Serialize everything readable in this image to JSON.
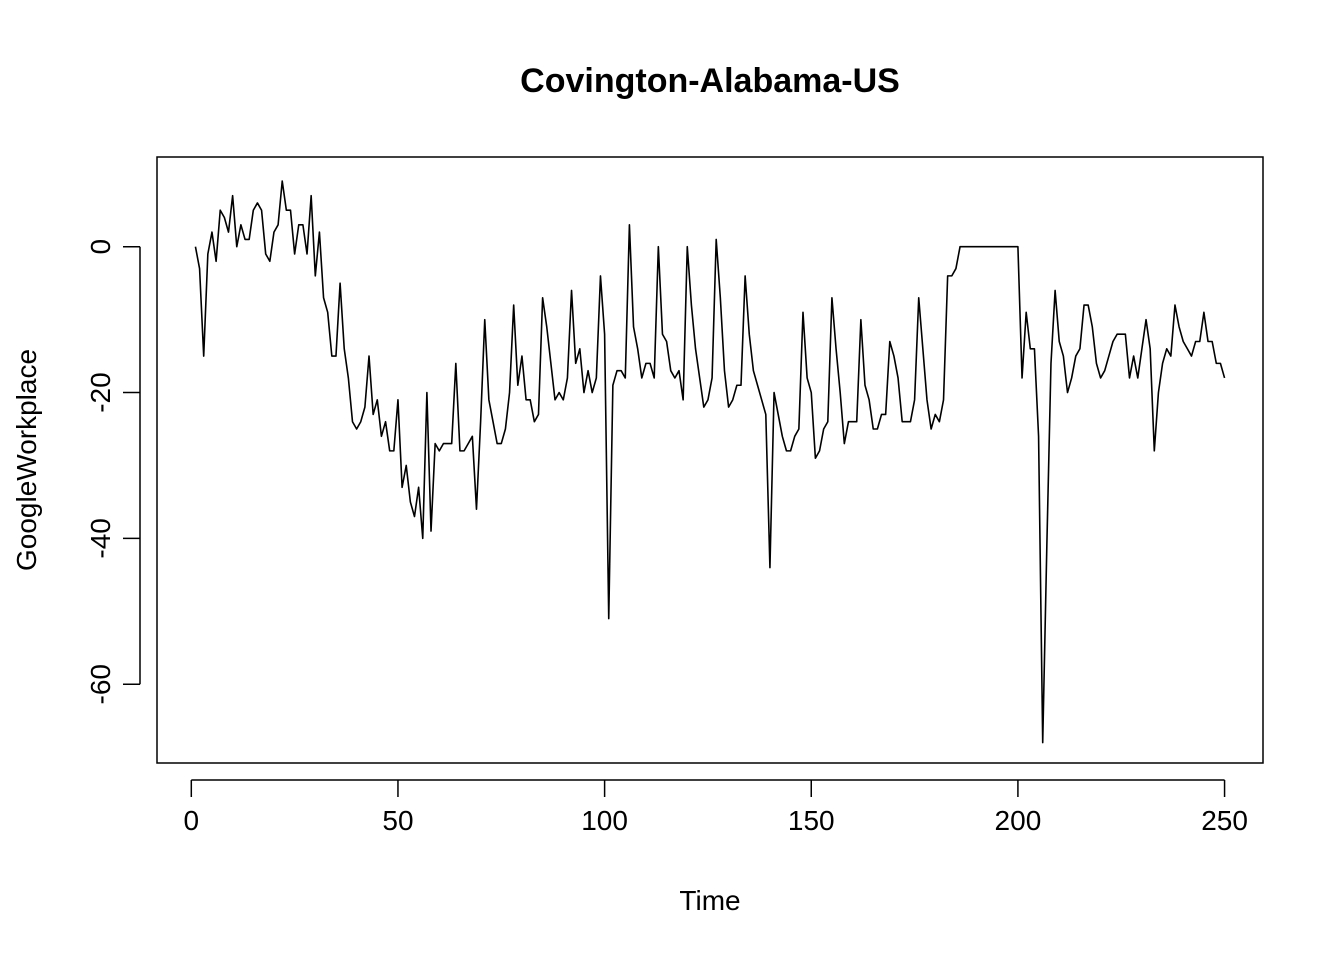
{
  "chart_data": {
    "type": "line",
    "title": "Covington-Alabama-US",
    "xlabel": "Time",
    "ylabel": "GoogleWorkplace",
    "xlim": [
      -8.3,
      259.3
    ],
    "ylim": [
      -70.8,
      12.3
    ],
    "xticks": [
      0,
      50,
      100,
      150,
      200,
      250
    ],
    "yticks": [
      -60,
      -40,
      -20,
      0
    ],
    "grid": false,
    "legend": "none",
    "line_color": "#000000",
    "x_start": 1,
    "y": [
      0,
      -3,
      -15,
      -1,
      2,
      -2,
      5,
      4,
      2,
      7,
      0,
      3,
      1,
      1,
      5,
      6,
      5,
      -1,
      -2,
      2,
      3,
      9,
      5,
      5,
      -1,
      3,
      3,
      -1,
      7,
      -4,
      2,
      -7,
      -9,
      -15,
      -15,
      -5,
      -14,
      -18,
      -24,
      -25,
      -24,
      -22,
      -15,
      -23,
      -21,
      -26,
      -24,
      -28,
      -28,
      -21,
      -33,
      -30,
      -35,
      -37,
      -33,
      -40,
      -20,
      -39,
      -27,
      -28,
      -27,
      -27,
      -27,
      -16,
      -28,
      -28,
      -27,
      -26,
      -36,
      -24,
      -10,
      -21,
      -24,
      -27,
      -27,
      -25,
      -20,
      -8,
      -19,
      -15,
      -21,
      -21,
      -24,
      -23,
      -7,
      -11,
      -16,
      -21,
      -20,
      -21,
      -18,
      -6,
      -16,
      -14,
      -20,
      -17,
      -20,
      -18,
      -4,
      -12,
      -51,
      -19,
      -17,
      -17,
      -18,
      3,
      -11,
      -14,
      -18,
      -16,
      -16,
      -18,
      0,
      -12,
      -13,
      -17,
      -18,
      -17,
      -21,
      0,
      -8,
      -14,
      -18,
      -22,
      -21,
      -18,
      1,
      -7,
      -17,
      -22,
      -21,
      -19,
      -19,
      -4,
      -12,
      -17,
      -19,
      -21,
      -23,
      -44,
      -20,
      -23,
      -26,
      -28,
      -28,
      -26,
      -25,
      -9,
      -18,
      -20,
      -29,
      -28,
      -25,
      -24,
      -7,
      -14,
      -20,
      -27,
      -24,
      -24,
      -24,
      -10,
      -19,
      -21,
      -25,
      -25,
      -23,
      -23,
      -13,
      -15,
      -18,
      -24,
      -24,
      -24,
      -21,
      -7,
      -14,
      -21,
      -25,
      -23,
      -24,
      -21,
      -4,
      -4,
      -3,
      0,
      0,
      0,
      0,
      0,
      0,
      0,
      0,
      0,
      0,
      0,
      0,
      0,
      0,
      0,
      -18,
      -9,
      -14,
      -14,
      -26,
      -68,
      -41,
      -16,
      -6,
      -13,
      -15,
      -20,
      -18,
      -15,
      -14,
      -8,
      -8,
      -11,
      -16,
      -18,
      -17,
      -15,
      -13,
      -12,
      -12,
      -12,
      -18,
      -15,
      -18,
      -14,
      -10,
      -14,
      -28,
      -20,
      -16,
      -14,
      -15,
      -8,
      -11,
      -13,
      -14,
      -15,
      -13,
      -13,
      -9,
      -13,
      -13,
      -16,
      -16,
      -18
    ]
  }
}
